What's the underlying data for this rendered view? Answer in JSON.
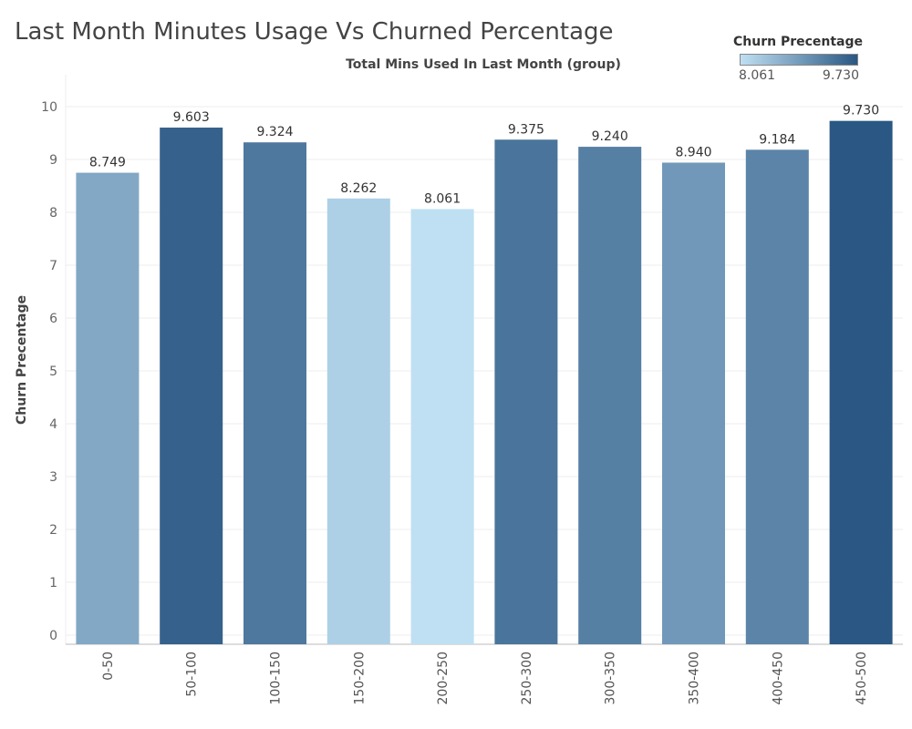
{
  "colors": {
    "ramp_low": "#bfe0f3",
    "ramp_high": "#2a5783",
    "gridline": "#eeeeee",
    "axis": "#bbbbbb"
  },
  "chart_data": {
    "type": "bar",
    "title": "Last Month Minutes Usage Vs Churned Percentage",
    "xlabel": "Total Mins Used In Last Month (group)",
    "ylabel": "Churn Precentage",
    "categories": [
      "0-50",
      "50-100",
      "100-150",
      "150-200",
      "200-250",
      "250-300",
      "300-350",
      "350-400",
      "400-450",
      "450-500"
    ],
    "values": [
      8.749,
      9.603,
      9.324,
      8.262,
      8.061,
      9.375,
      9.24,
      8.94,
      9.184,
      9.73
    ],
    "data_labels": [
      "8.749",
      "9.603",
      "9.324",
      "8.262",
      "8.061",
      "9.375",
      "9.240",
      "8.940",
      "9.184",
      "9.730"
    ],
    "ylim": [
      0,
      10.2
    ],
    "yticks": [
      0,
      1,
      2,
      3,
      4,
      5,
      6,
      7,
      8,
      9,
      10
    ],
    "grid": true,
    "legend": {
      "title": "Churn Precentage",
      "min_label": "8.061",
      "max_label": "9.730",
      "min": 8.061,
      "max": 9.73,
      "placement": "top-right"
    }
  }
}
